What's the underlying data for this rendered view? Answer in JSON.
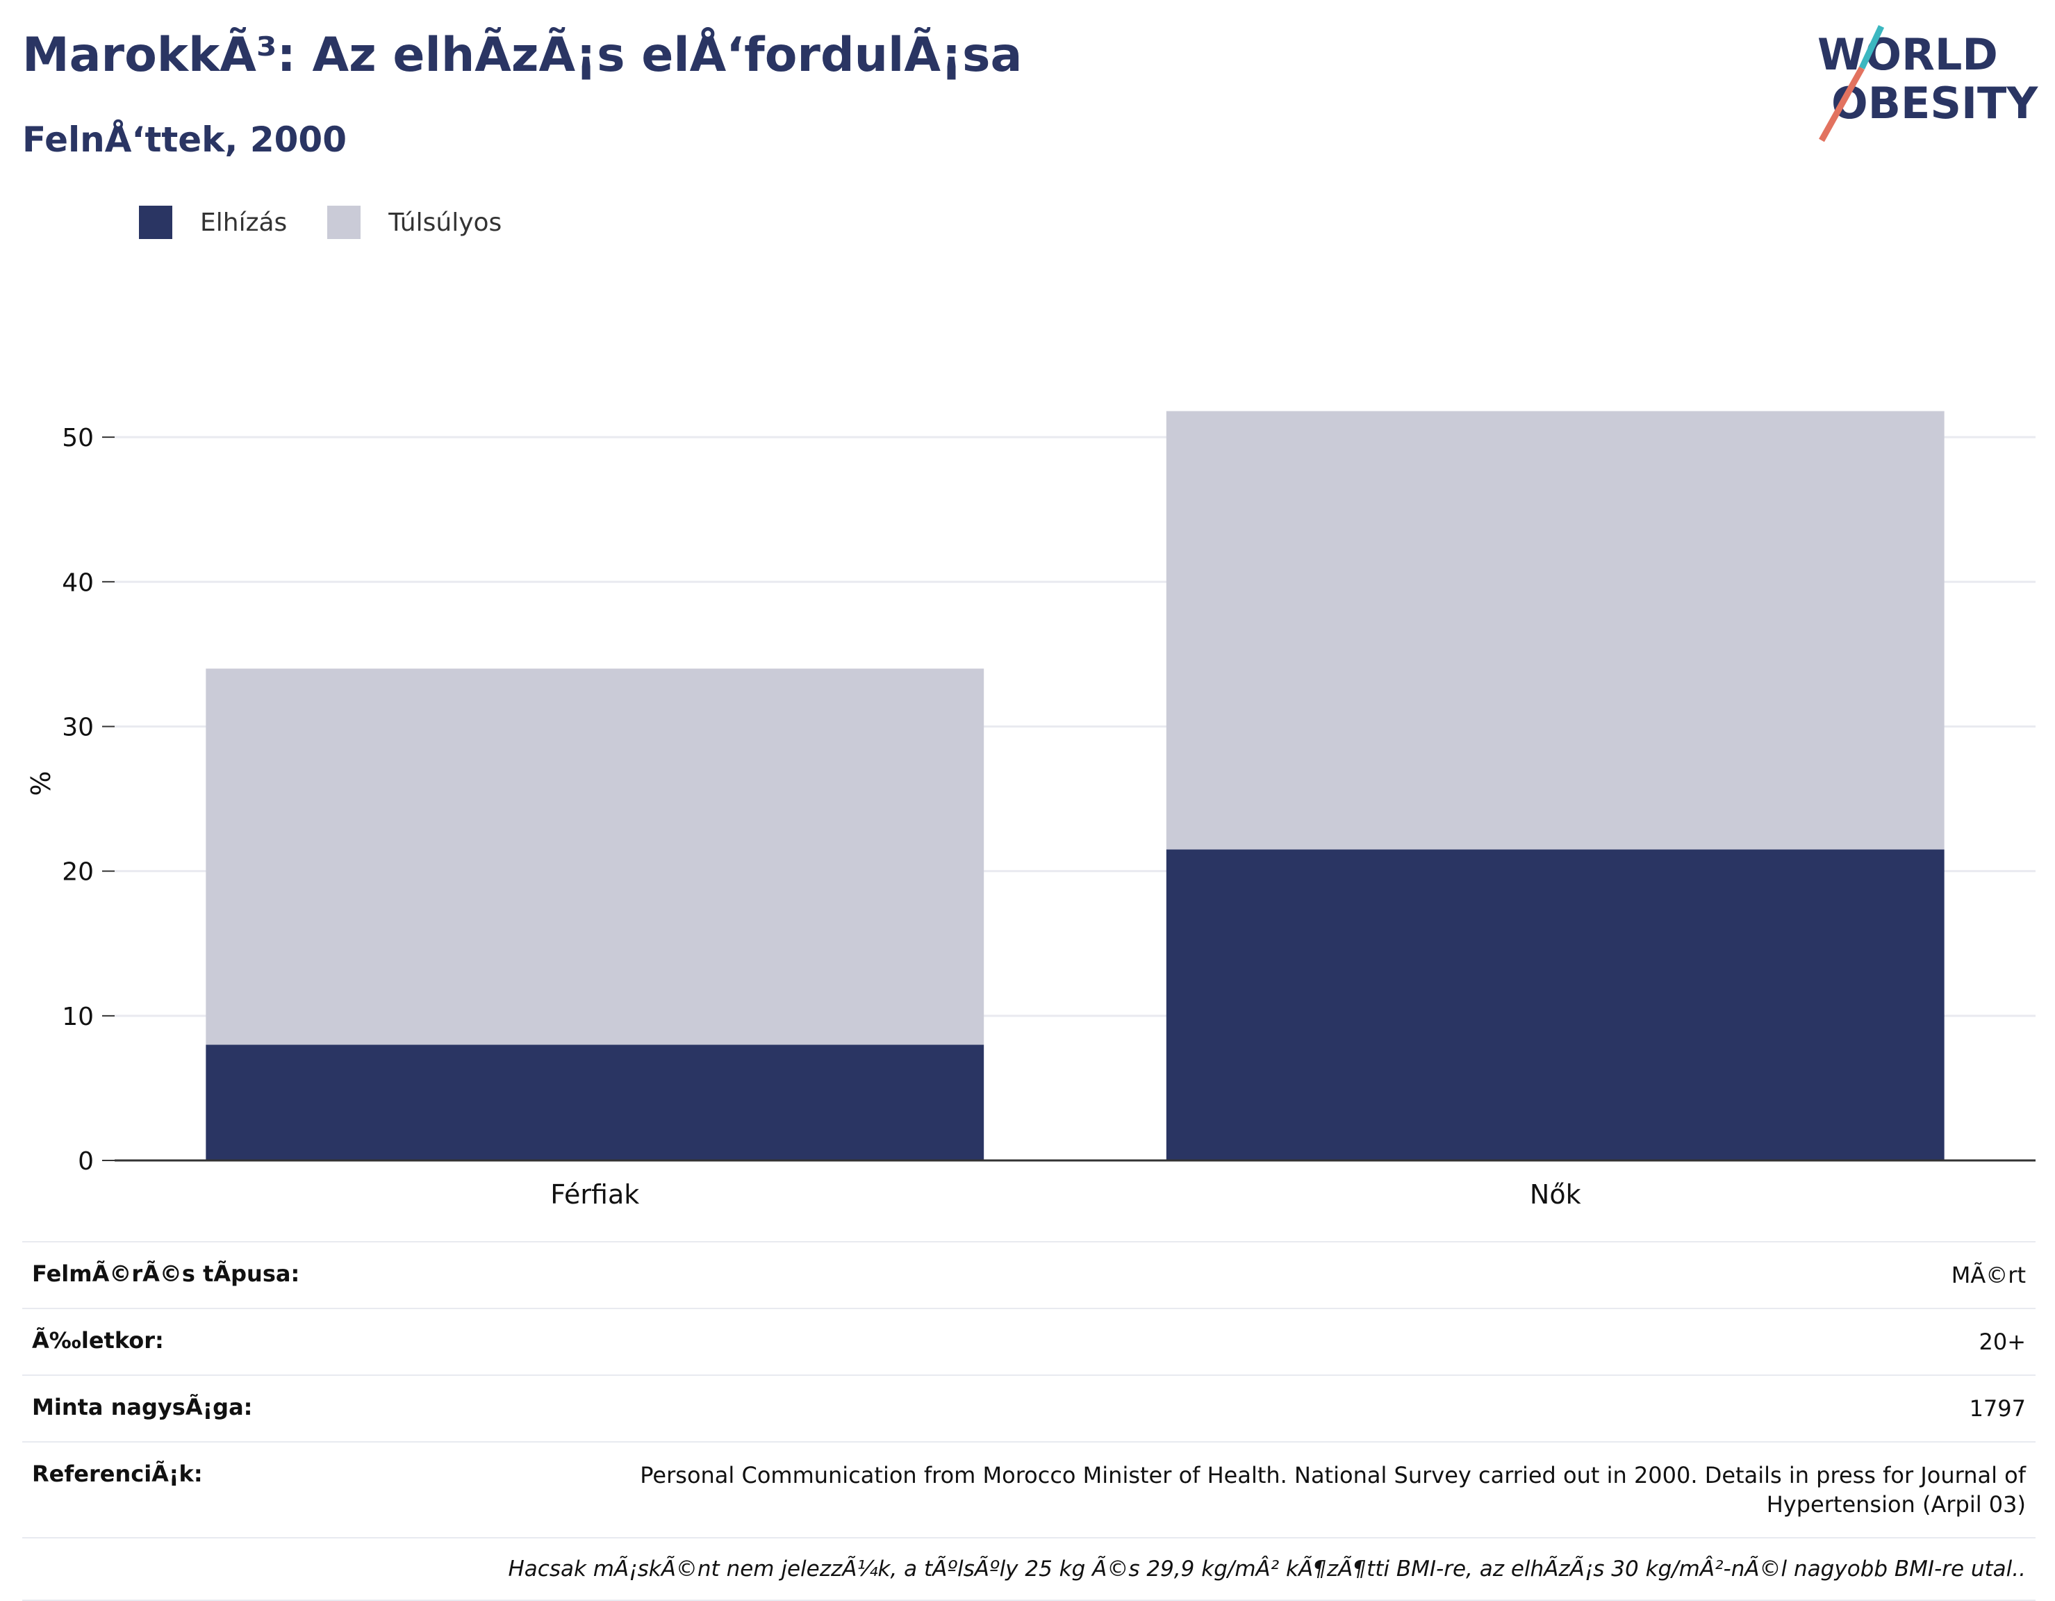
{
  "title": "MarokkÃ³: Az elhÃ­zÃ¡s elÅ‘fordulÃ¡sa",
  "subtitle": "FelnÅ‘ttek, 2000",
  "logo": {
    "line1": "WORLD",
    "line2": "OBESITY"
  },
  "legend": [
    {
      "label": "Elhízás",
      "color": "#2a3563"
    },
    {
      "label": "Túlsúlyos",
      "color": "#cacbd7"
    }
  ],
  "chart_data": {
    "type": "bar",
    "stacked": true,
    "categories": [
      "Férfiak",
      "Nők"
    ],
    "series": [
      {
        "name": "Elhízás",
        "values": [
          8.0,
          21.5
        ],
        "color": "#2a3563"
      },
      {
        "name": "Túlsúlyos",
        "values": [
          26.0,
          30.3
        ],
        "color": "#cacbd7"
      }
    ],
    "ylabel": "%",
    "ylim": [
      0,
      55
    ],
    "yticks": [
      0,
      10,
      20,
      30,
      40,
      50
    ],
    "grid": true,
    "legend_position": "top-left"
  },
  "meta": [
    {
      "key": "FelmÃ©rÃ©s tÃpusa:",
      "value": "MÃ©rt"
    },
    {
      "key": "Ã‰letkor:",
      "value": "20+"
    },
    {
      "key": "Minta nagysÃ¡ga:",
      "value": "1797"
    },
    {
      "key": "ReferenciÃ¡k:",
      "value": "Personal Communication from Morocco Minister of Health. National Survey carried out in 2000. Details in press for Journal of Hypertension (Arpil 03)"
    }
  ],
  "note": "Hacsak mÃ¡skÃ©nt nem jelezzÃ¼k, a tÃºlsÃºly 25 kg Ã©s 29,9 kg/mÂ² kÃ¶zÃ¶tti BMI-re, az elhÃ­zÃ¡s 30 kg/mÂ²-nÃ©l nagyobb BMI-re utal.."
}
